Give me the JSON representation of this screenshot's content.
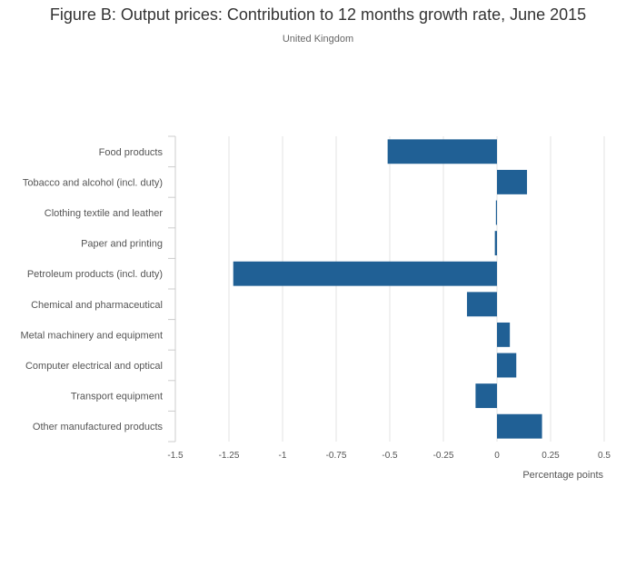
{
  "chart_data": {
    "type": "bar",
    "orientation": "horizontal",
    "title": "Figure B: Output prices: Contribution to 12 months growth rate, June 2015",
    "subtitle": "United Kingdom",
    "xlabel": "Percentage points",
    "ylabel": "",
    "xlim": [
      -1.5,
      0.5
    ],
    "xticks": [
      -1.5,
      -1.25,
      -1,
      -0.75,
      -0.5,
      -0.25,
      0,
      0.25,
      0.5
    ],
    "xtick_labels": [
      "-1.5",
      "-1.25",
      "-1",
      "-0.75",
      "-0.5",
      "-0.25",
      "0",
      "0.25",
      "0.5"
    ],
    "categories": [
      "Food products",
      "Tobacco and alcohol (incl. duty)",
      "Clothing textile and leather",
      "Paper and printing",
      "Petroleum products (incl. duty)",
      "Chemical and pharmaceutical",
      "Metal machinery and equipment",
      "Computer electrical and optical",
      "Transport equipment",
      "Other manufactured products"
    ],
    "values": [
      -0.51,
      0.14,
      -0.005,
      -0.01,
      -1.23,
      -0.14,
      0.06,
      0.09,
      -0.1,
      0.21
    ],
    "bar_color": "#206095",
    "grid": true
  }
}
